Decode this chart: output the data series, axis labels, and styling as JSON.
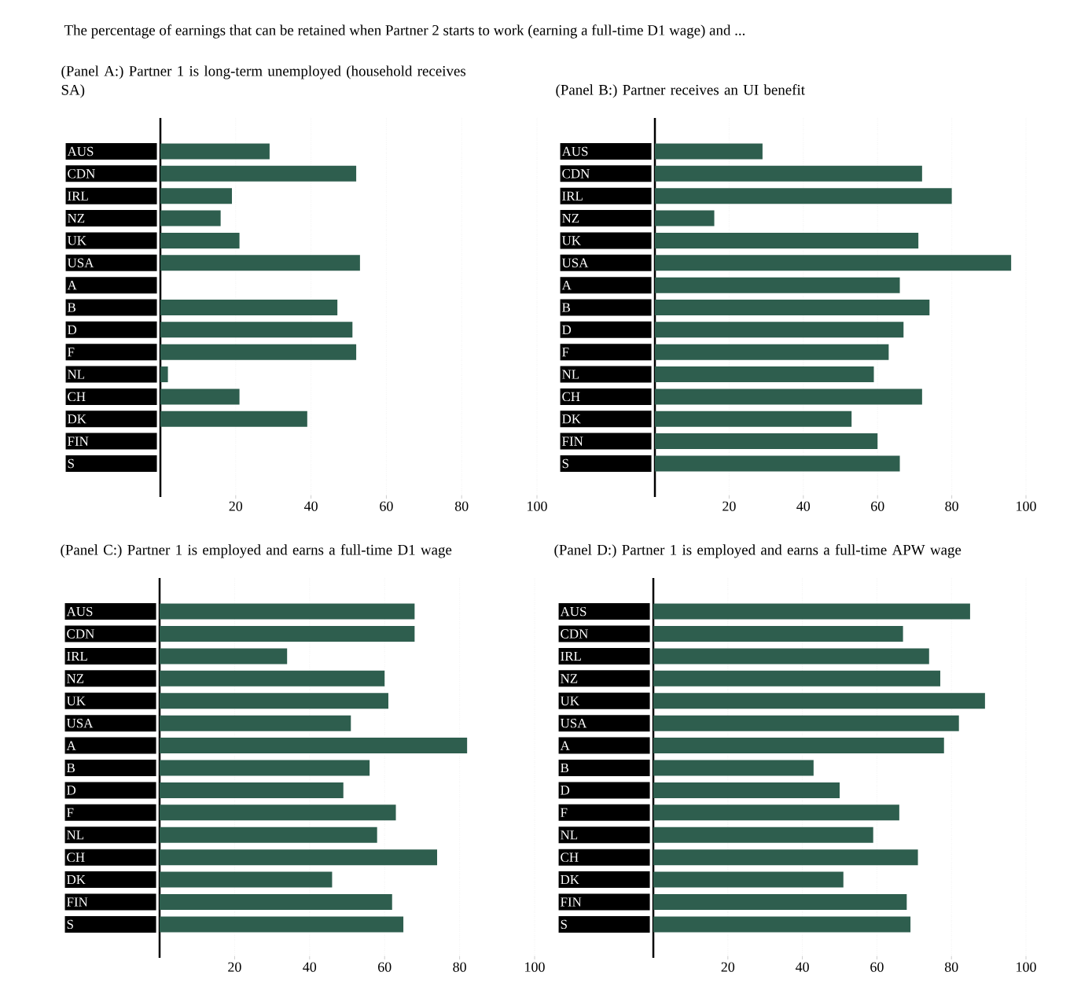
{
  "chart_data": [
    {
      "type": "bar",
      "orientation": "horizontal",
      "title": "The percentage of earnings that can be retained when Partner 2 starts to work (earning a full-time D1 wage) and ...",
      "subtitle": "(Panel A:) Partner 1 is long-term unemployed (household receives SA)",
      "categories": [
        "AUS",
        "CDN",
        "IRL",
        "NZ",
        "UK",
        "USA",
        "A",
        "B",
        "D",
        "F",
        "NL",
        "CH",
        "DK",
        "FIN",
        "S"
      ],
      "values": [
        29,
        52,
        19,
        16,
        21,
        53,
        null,
        47,
        51,
        52,
        2,
        21,
        39,
        null,
        null
      ],
      "color": "#2e5e4e",
      "xlim": [
        0,
        100
      ],
      "xticks": [
        20,
        40,
        60,
        80,
        100
      ],
      "grid": "x"
    },
    {
      "type": "bar",
      "orientation": "horizontal",
      "subtitle": "(Panel B:) Partner receives an UI benefit",
      "categories": [
        "AUS",
        "CDN",
        "IRL",
        "NZ",
        "UK",
        "USA",
        "A",
        "B",
        "D",
        "F",
        "NL",
        "CH",
        "DK",
        "FIN",
        "S"
      ],
      "values": [
        29,
        72,
        80,
        16,
        71,
        96,
        66,
        74,
        67,
        63,
        59,
        72,
        53,
        60,
        66
      ],
      "color": "#2e5e4e",
      "xlim": [
        0,
        100
      ],
      "xticks": [
        20,
        40,
        60,
        80,
        100
      ],
      "grid": "x"
    },
    {
      "type": "bar",
      "orientation": "horizontal",
      "subtitle": "(Panel C:) Partner 1 is employed and earns a full-time D1 wage",
      "categories": [
        "AUS",
        "CDN",
        "IRL",
        "NZ",
        "UK",
        "USA",
        "A",
        "B",
        "D",
        "F",
        "NL",
        "CH",
        "DK",
        "FIN",
        "S"
      ],
      "values": [
        68,
        68,
        34,
        60,
        61,
        51,
        82,
        56,
        49,
        63,
        58,
        74,
        46,
        62,
        65
      ],
      "color": "#2e5e4e",
      "xlim": [
        0,
        100
      ],
      "xticks": [
        20,
        40,
        60,
        80,
        100
      ],
      "grid": "x"
    },
    {
      "type": "bar",
      "orientation": "horizontal",
      "subtitle": "(Panel D:) Partner 1 is employed and earns a full-time APW wage",
      "categories": [
        "AUS",
        "CDN",
        "IRL",
        "NZ",
        "UK",
        "USA",
        "A",
        "B",
        "D",
        "F",
        "NL",
        "CH",
        "DK",
        "FIN",
        "S"
      ],
      "values": [
        85,
        67,
        74,
        77,
        89,
        82,
        78,
        43,
        50,
        66,
        59,
        71,
        51,
        68,
        69
      ],
      "color": "#2e5e4e",
      "xlim": [
        0,
        100
      ],
      "xticks": [
        20,
        40,
        60,
        80,
        100
      ],
      "grid": "x"
    }
  ]
}
